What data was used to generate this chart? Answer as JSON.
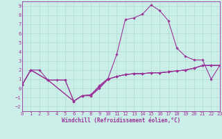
{
  "xlabel": "Windchill (Refroidissement éolien,°C)",
  "bg_color": "#cceee8",
  "grid_color": "#aaddcc",
  "line_color": "#993399",
  "xlim": [
    0,
    23
  ],
  "ylim": [
    -2.5,
    9.5
  ],
  "yticks": [
    -2,
    -1,
    0,
    1,
    2,
    3,
    4,
    5,
    6,
    7,
    8,
    9
  ],
  "xticks": [
    0,
    1,
    2,
    3,
    4,
    5,
    6,
    7,
    8,
    9,
    10,
    11,
    12,
    13,
    14,
    15,
    16,
    17,
    18,
    19,
    20,
    21,
    22,
    23
  ],
  "series": [
    {
      "x": [
        0,
        1,
        3,
        6,
        7,
        8,
        9,
        10,
        11,
        12,
        13,
        14,
        15,
        16,
        17,
        18,
        19,
        20,
        21,
        22,
        23
      ],
      "y": [
        0.4,
        2.0,
        0.9,
        -1.4,
        -0.8,
        -0.8,
        0.2,
        1.0,
        1.3,
        1.5,
        1.6,
        1.6,
        1.7,
        1.7,
        1.8,
        1.9,
        2.0,
        2.2,
        2.5,
        2.5,
        2.5
      ]
    },
    {
      "x": [
        0,
        1,
        3,
        6,
        7,
        8,
        9,
        10,
        11,
        12,
        13,
        14,
        15,
        16,
        17,
        18,
        19,
        20,
        21,
        22,
        23
      ],
      "y": [
        0.4,
        2.0,
        0.9,
        -1.4,
        -0.8,
        -0.7,
        0.3,
        1.1,
        3.7,
        7.5,
        7.7,
        8.1,
        9.1,
        8.5,
        7.4,
        4.4,
        3.5,
        3.1,
        3.1,
        1.0,
        2.5
      ]
    },
    {
      "x": [
        0,
        1,
        3,
        5,
        6,
        7,
        8,
        9,
        10,
        11,
        12,
        13,
        14,
        15,
        16,
        17,
        18,
        19,
        20,
        21,
        22,
        23
      ],
      "y": [
        0.4,
        2.0,
        0.9,
        0.9,
        -1.4,
        -0.8,
        -0.8,
        0.0,
        1.0,
        1.3,
        1.5,
        1.6,
        1.6,
        1.7,
        1.7,
        1.8,
        1.9,
        2.0,
        2.2,
        2.5,
        2.5,
        2.5
      ]
    },
    {
      "x": [
        0,
        1,
        2,
        3,
        4,
        5,
        6,
        7,
        8,
        9,
        10,
        11,
        12,
        13,
        14,
        15,
        16,
        17,
        18,
        19,
        20,
        21,
        22,
        23
      ],
      "y": [
        0.4,
        2.0,
        2.0,
        0.9,
        0.9,
        0.9,
        -1.4,
        -0.8,
        -0.7,
        0.2,
        1.0,
        1.3,
        1.5,
        1.6,
        1.6,
        1.7,
        1.7,
        1.8,
        1.9,
        2.0,
        2.2,
        2.5,
        2.5,
        2.5
      ]
    }
  ],
  "marker": "D",
  "markersize": 1.8,
  "linewidth": 0.8,
  "tick_fontsize": 5.0,
  "xlabel_fontsize": 5.5
}
